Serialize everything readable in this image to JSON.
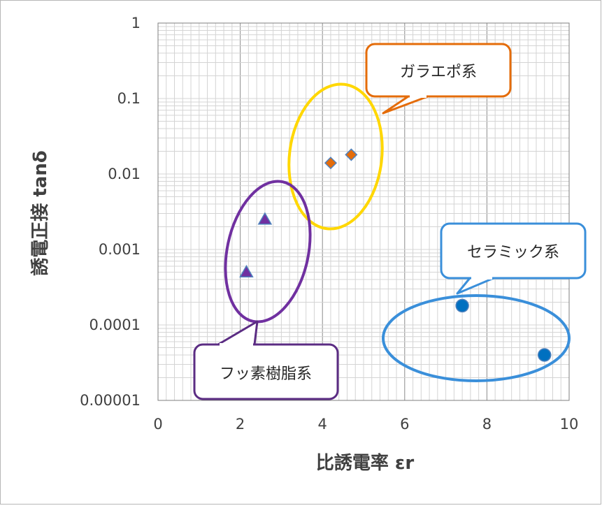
{
  "chart_data": {
    "type": "scatter",
    "title": "",
    "xlabel": "比誘電率 εr",
    "ylabel": "誘電正接 tanδ",
    "xlim": [
      0,
      10
    ],
    "ylim": [
      1e-05,
      1
    ],
    "yscale": "log",
    "grid": true,
    "x_ticks": [
      {
        "value": 0,
        "label": "0"
      },
      {
        "value": 2,
        "label": "2"
      },
      {
        "value": 4,
        "label": "4"
      },
      {
        "value": 6,
        "label": "6"
      },
      {
        "value": 8,
        "label": "8"
      },
      {
        "value": 10,
        "label": "10"
      }
    ],
    "y_ticks": [
      {
        "value": 1,
        "label": "1"
      },
      {
        "value": 0.1,
        "label": "0.1"
      },
      {
        "value": 0.01,
        "label": "0.01"
      },
      {
        "value": 0.001,
        "label": "0.001"
      },
      {
        "value": 0.0001,
        "label": "0.0001"
      },
      {
        "value": 1e-05,
        "label": "0.00001"
      }
    ],
    "series": [
      {
        "marker": "diamond",
        "color": "#E46C0A",
        "points": [
          {
            "x": 4.2,
            "y": 0.014
          },
          {
            "x": 4.7,
            "y": 0.018
          }
        ]
      },
      {
        "marker": "triangle",
        "color": "#7030A0",
        "points": [
          {
            "x": 2.15,
            "y": 0.0005
          },
          {
            "x": 2.6,
            "y": 0.0025
          }
        ]
      },
      {
        "marker": "circle",
        "color": "#0070C0",
        "points": [
          {
            "x": 7.4,
            "y": 0.00018
          },
          {
            "x": 9.4,
            "y": 4e-05
          }
        ]
      }
    ],
    "groups": [
      {
        "label": "ガラエポ系",
        "ellipse_color": "#FFD700",
        "callout_color": "#E46C0A",
        "center": {
          "x": 4.5,
          "y": 0.012
        }
      },
      {
        "label": "フッ素樹脂系",
        "ellipse_color": "#7030A0",
        "callout_color": "#5B2C83",
        "center": {
          "x": 2.5,
          "y": 0.0008
        }
      },
      {
        "label": "セラミック系",
        "ellipse_color": "#3A8FDA",
        "callout_color": "#3A8FDA",
        "center": {
          "x": 7.7,
          "y": 7e-05
        }
      }
    ]
  }
}
